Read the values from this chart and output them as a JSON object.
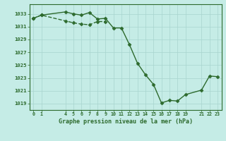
{
  "x_full": [
    0,
    1,
    4,
    5,
    6,
    7,
    8,
    9,
    10,
    11,
    12,
    13,
    14,
    15,
    16,
    17,
    18,
    19,
    21,
    22,
    23
  ],
  "y_full": [
    1032.3,
    1032.8,
    1033.3,
    1033.0,
    1032.8,
    1033.2,
    1032.2,
    1032.3,
    1030.8,
    1030.8,
    1028.2,
    1025.3,
    1023.5,
    1022.0,
    1019.1,
    1019.5,
    1019.4,
    1020.4,
    1021.1,
    1023.3,
    1023.2
  ],
  "x_dash": [
    0,
    1,
    4,
    5,
    6,
    7,
    8,
    9
  ],
  "y_dash": [
    1032.3,
    1032.8,
    1031.9,
    1031.6,
    1031.4,
    1031.3,
    1031.8,
    1031.8
  ],
  "x_ticks": [
    0,
    1,
    4,
    5,
    6,
    7,
    8,
    9,
    10,
    11,
    12,
    13,
    14,
    15,
    16,
    17,
    18,
    19,
    21,
    22,
    23
  ],
  "x_tick_labels": [
    "0",
    "1",
    "4",
    "5",
    "6",
    "7",
    "8",
    "9",
    "10",
    "11",
    "12",
    "13",
    "14",
    "15",
    "16",
    "17",
    "18",
    "19",
    "21",
    "22",
    "23"
  ],
  "ylim": [
    1018.0,
    1034.5
  ],
  "y_ticks": [
    1019,
    1021,
    1023,
    1025,
    1027,
    1029,
    1031,
    1033
  ],
  "xlim": [
    -0.5,
    23.5
  ],
  "line_color": "#2d6a2d",
  "marker_color": "#2d6a2d",
  "bg_color": "#c5ece6",
  "grid_color": "#a8d5ce",
  "xlabel": "Graphe pression niveau de la mer (hPa)",
  "marker": "D",
  "marker_size": 2.5,
  "line_width": 1.0
}
